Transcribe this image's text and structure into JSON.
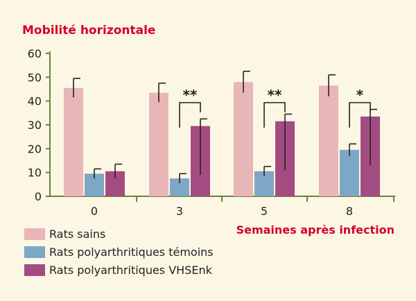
{
  "chart_data": {
    "type": "bar",
    "title": "Mobilité horizontale",
    "xlabel": "Semaines après infection",
    "ylabel": "",
    "ylim": [
      0,
      60
    ],
    "yticks": [
      0,
      10,
      20,
      30,
      40,
      50,
      60
    ],
    "categories": [
      "0",
      "3",
      "5",
      "8"
    ],
    "series": [
      {
        "name": "Rats sains",
        "values": [
          45.5,
          43.5,
          48,
          46.5
        ],
        "errors": [
          4,
          4,
          4.5,
          4.5
        ]
      },
      {
        "name": "Rats polyarthritiques témoins",
        "values": [
          9.5,
          7.5,
          10.5,
          19.5
        ],
        "errors": [
          2,
          2,
          2,
          2.5
        ]
      },
      {
        "name": "Rats polyarthritiques VHSEnk",
        "values": [
          10.5,
          29.5,
          31.5,
          33.5
        ],
        "errors": [
          3,
          3,
          3,
          3
        ]
      }
    ],
    "annotations": [
      {
        "category": "3",
        "label": "**"
      },
      {
        "category": "5",
        "label": "**"
      },
      {
        "category": "8",
        "label": "*"
      }
    ],
    "legend_position": "bottom-left",
    "grid": false
  },
  "colors": {
    "title": "#d4002a",
    "series": [
      "#e9b6b8",
      "#7ea7c5",
      "#a44c82"
    ],
    "axis": "#6a7f3e",
    "background": "#fcf7e4"
  }
}
